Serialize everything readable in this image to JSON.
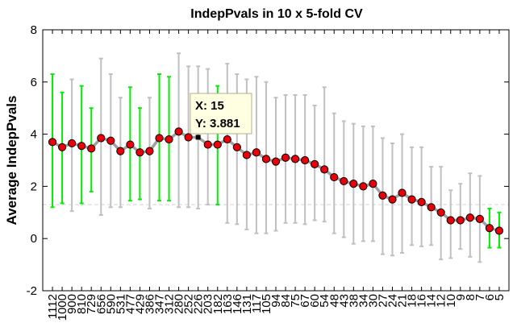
{
  "chart_data": {
    "type": "line",
    "title": "IndepPvals in 10 x 5-fold CV",
    "xlabel": "",
    "ylabel": "Average IndepPvals",
    "ylim": [
      -2,
      8
    ],
    "yticks": [
      -2,
      0,
      2,
      4,
      6,
      8
    ],
    "categories": [
      "1112",
      "1000",
      "900",
      "810",
      "729",
      "656",
      "590",
      "531",
      "477",
      "429",
      "386",
      "347",
      "312",
      "280",
      "252",
      "226",
      "203",
      "182",
      "163",
      "146",
      "131",
      "117",
      "105",
      "94",
      "84",
      "75",
      "67",
      "60",
      "54",
      "48",
      "43",
      "38",
      "34",
      "30",
      "27",
      "24",
      "21",
      "18",
      "16",
      "14",
      "12",
      "10",
      "9",
      "8",
      "7",
      "6",
      "5"
    ],
    "xtick_labels": [
      "1112",
      "1000",
      "900",
      "810",
      "729",
      "656",
      "590",
      "531",
      "477",
      "429",
      "386",
      "347",
      "312",
      "280",
      "252",
      "226",
      "203",
      "182",
      "163",
      "146",
      "131",
      "117",
      "105",
      "94",
      "84",
      "75",
      "67",
      "60",
      "54",
      "48",
      "43",
      "38",
      "34",
      "30",
      "27",
      "24",
      "21",
      "18",
      "16",
      "14",
      "12",
      "10",
      "9",
      "8",
      "7",
      "6",
      "5"
    ],
    "series": [
      {
        "values": [
          3.7,
          3.5,
          3.65,
          3.55,
          3.45,
          3.85,
          3.75,
          3.35,
          3.6,
          3.3,
          3.35,
          3.85,
          3.8,
          4.1,
          3.88,
          3.881,
          3.6,
          3.6,
          3.8,
          3.5,
          3.2,
          3.3,
          3.05,
          2.95,
          3.1,
          3.05,
          3.0,
          2.85,
          2.65,
          2.35,
          2.2,
          2.1,
          2.0,
          2.1,
          1.65,
          1.5,
          1.75,
          1.5,
          1.4,
          1.2,
          1.0,
          0.7,
          0.7,
          0.8,
          0.75,
          0.4,
          0.3
        ],
        "err_low": [
          1.2,
          1.35,
          1.05,
          1.35,
          1.8,
          0.9,
          1.2,
          1.2,
          1.45,
          1.5,
          1.15,
          1.45,
          1.45,
          1.2,
          1.2,
          1.15,
          1.3,
          1.3,
          0.6,
          0.55,
          0.35,
          0.2,
          0.2,
          0.3,
          0.6,
          0.6,
          0.55,
          0.7,
          0.65,
          0.2,
          0.05,
          -0.2,
          -0.1,
          -0.1,
          -0.6,
          -0.65,
          -0.55,
          -0.25,
          -0.3,
          -0.25,
          -0.8,
          -0.75,
          -0.4,
          -0.7,
          -0.9,
          -0.35,
          -0.35
        ],
        "err_high": [
          6.3,
          5.6,
          6.1,
          5.85,
          5.0,
          6.9,
          6.3,
          5.4,
          5.8,
          5.0,
          5.4,
          6.3,
          6.2,
          7.1,
          6.6,
          6.6,
          6.5,
          5.85,
          6.7,
          6.3,
          6.1,
          6.2,
          6.0,
          5.4,
          5.5,
          5.5,
          5.5,
          5.1,
          5.8,
          4.8,
          4.5,
          4.4,
          4.3,
          4.3,
          3.85,
          3.65,
          4.0,
          3.5,
          3.5,
          2.75,
          2.75,
          1.85,
          2.1,
          2.5,
          2.4,
          1.15,
          1.0
        ],
        "err_green": [
          true,
          true,
          false,
          true,
          true,
          false,
          false,
          false,
          true,
          true,
          false,
          true,
          true,
          false,
          false,
          false,
          false,
          true,
          false,
          false,
          false,
          false,
          false,
          false,
          false,
          false,
          false,
          false,
          false,
          false,
          false,
          false,
          false,
          false,
          false,
          false,
          false,
          false,
          false,
          false,
          false,
          false,
          false,
          false,
          false,
          true,
          true
        ]
      }
    ],
    "threshold_line": 1.3,
    "datatip": {
      "index": 15,
      "x_label": "X: 15",
      "y_label": "Y: 3.881"
    },
    "colors": {
      "marker_fill": "#e8000b",
      "line": "#a0a0a0",
      "err_gray": "#c0c0c0",
      "err_green": "#00ee00",
      "threshold": "#d8d8d8",
      "datatip_bg": "#ffffe1"
    },
    "grid": false
  }
}
